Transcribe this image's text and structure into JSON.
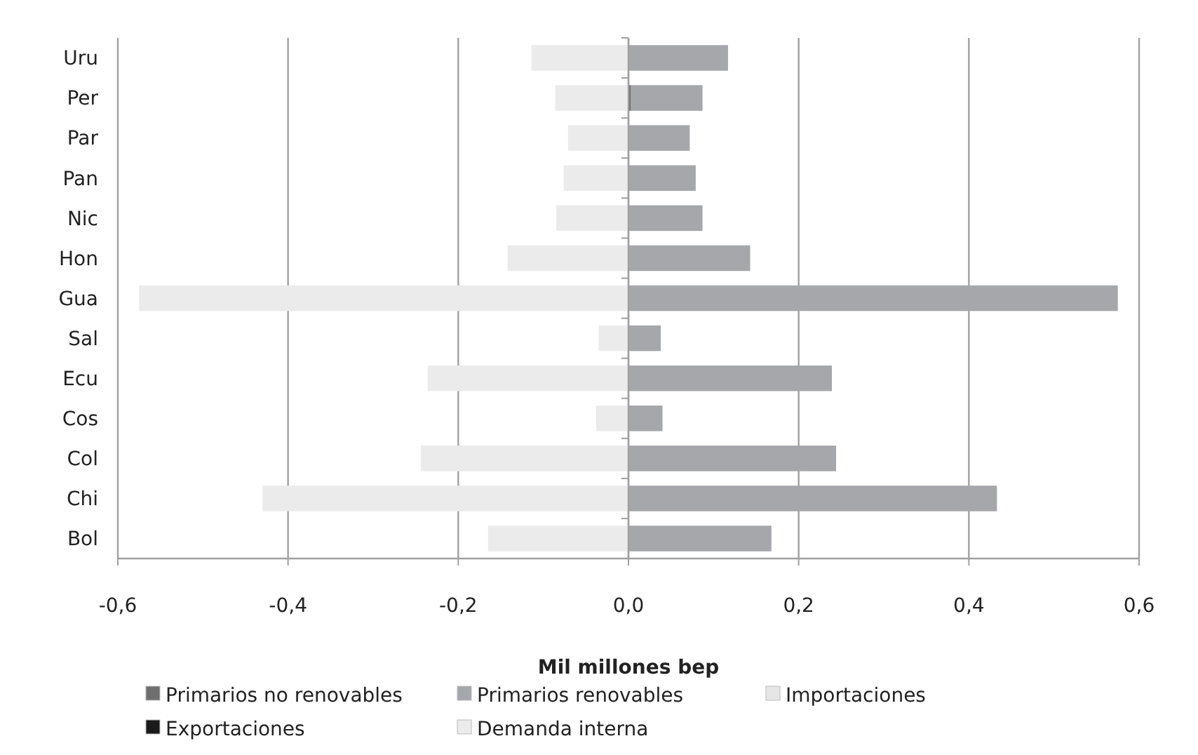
{
  "chart_data": {
    "type": "bar",
    "orientation": "horizontal",
    "stacked": true,
    "xlabel": "Mil millones bep",
    "categories": [
      "Uru",
      "Per",
      "Par",
      "Pan",
      "Nic",
      "Hon",
      "Gua",
      "Sal",
      "Ecu",
      "Cos",
      "Col",
      "Chi",
      "Bol"
    ],
    "series": [
      {
        "name": "Primarios no renovables",
        "color": "#6f6f6f",
        "values": [
          0,
          0.003,
          0,
          0,
          0,
          0,
          0,
          0,
          0,
          0,
          0,
          0,
          0
        ]
      },
      {
        "name": "Primarios renovables",
        "color": "#a6a7aa",
        "values": [
          0.117,
          0.084,
          0.072,
          0.079,
          0.087,
          0.143,
          0.575,
          0.038,
          0.239,
          0.04,
          0.244,
          0.433,
          0.168
        ]
      },
      {
        "name": "Importaciones",
        "color": "#e6e6e6",
        "values": [
          0,
          0,
          0,
          0,
          0,
          0,
          0,
          0,
          0,
          0,
          0,
          0,
          0
        ]
      },
      {
        "name": "Exportaciones",
        "color": "#1a1a1a",
        "values": [
          0,
          0,
          0,
          0,
          0,
          0,
          0,
          0,
          0,
          0,
          0,
          0,
          0
        ]
      },
      {
        "name": "Demanda interna",
        "color": "#ebebec",
        "values": [
          -0.114,
          -0.086,
          -0.071,
          -0.076,
          -0.085,
          -0.142,
          -0.575,
          -0.035,
          -0.236,
          -0.038,
          -0.244,
          -0.43,
          -0.165
        ]
      }
    ],
    "xlim": [
      -0.6,
      0.6
    ],
    "xticks": [
      {
        "value": -0.6,
        "label": "-0,6"
      },
      {
        "value": -0.4,
        "label": "-0,4"
      },
      {
        "value": -0.2,
        "label": "-0,2"
      },
      {
        "value": 0,
        "label": "0,0"
      },
      {
        "value": 0.2,
        "label": "0,2"
      },
      {
        "value": 0.4,
        "label": "0,4"
      },
      {
        "value": 0.6,
        "label": "0,6"
      }
    ],
    "grid": "x",
    "legend": "bottom"
  }
}
